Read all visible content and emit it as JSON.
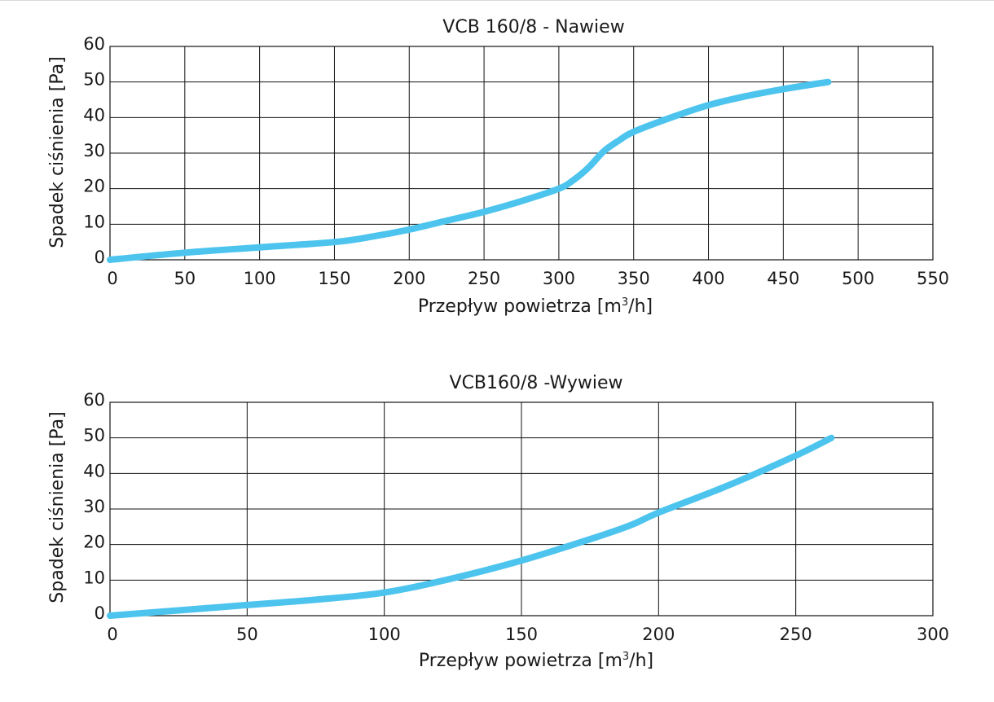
{
  "colors": {
    "series": "#4cc4ee",
    "grid": "#111111",
    "text": "#1a1a1a"
  },
  "chart_data": [
    {
      "type": "line",
      "title": "VCB 160/8 - Nawiew",
      "xlabel_main": "Przepływ powietrza [m",
      "xlabel_sup": "3",
      "xlabel_tail": "/h]",
      "ylabel": "Spadek ciśnienia [Pa]",
      "xlim": [
        0,
        550
      ],
      "ylim": [
        0,
        60
      ],
      "xticks": [
        0,
        50,
        100,
        150,
        200,
        250,
        300,
        350,
        400,
        450,
        500,
        550
      ],
      "yticks": [
        0,
        10,
        20,
        30,
        40,
        50,
        60
      ],
      "grid": true,
      "series": [
        {
          "x": [
            0,
            50,
            100,
            150,
            175,
            200,
            225,
            250,
            275,
            300,
            310,
            320,
            330,
            340,
            350,
            375,
            400,
            425,
            450,
            480
          ],
          "y": [
            0,
            2,
            3.5,
            5,
            6.5,
            8.5,
            11,
            13.5,
            16.5,
            20,
            22.5,
            26,
            30.5,
            33.5,
            36,
            40,
            43.5,
            46,
            48,
            50
          ]
        }
      ]
    },
    {
      "type": "line",
      "title": "VCB160/8 -Wywiew",
      "xlabel_main": "Przepływ powietrza [m",
      "xlabel_sup": "3",
      "xlabel_tail": "/h]",
      "ylabel": "Spadek ciśnienia [Pa]",
      "xlim": [
        0,
        300
      ],
      "ylim": [
        0,
        60
      ],
      "xticks": [
        0,
        50,
        100,
        150,
        200,
        250,
        300
      ],
      "yticks": [
        0,
        10,
        20,
        30,
        40,
        50,
        60
      ],
      "grid": true,
      "series": [
        {
          "x": [
            0,
            25,
            50,
            75,
            100,
            125,
            150,
            175,
            190,
            200,
            225,
            250,
            263
          ],
          "y": [
            0,
            1.5,
            3,
            4.5,
            6.5,
            10.5,
            15.5,
            21.5,
            25.5,
            29,
            36.5,
            45,
            50
          ]
        }
      ]
    }
  ]
}
